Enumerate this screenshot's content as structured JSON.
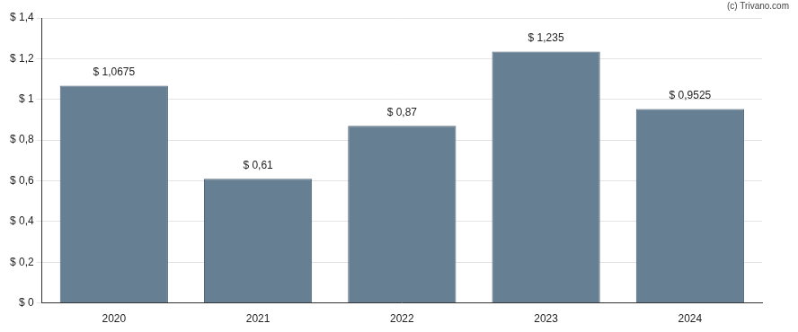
{
  "chart_data": {
    "type": "bar",
    "annotation": "(c) Trivano.com",
    "categories": [
      "2020",
      "2021",
      "2022",
      "2023",
      "2024"
    ],
    "values": [
      1.0675,
      0.61,
      0.87,
      1.235,
      0.9525
    ],
    "value_labels": [
      "$ 1,0675",
      "$ 0,61",
      "$ 0,87",
      "$ 1,235",
      "$ 0,9525"
    ],
    "data_labels": true,
    "color": "#667f93",
    "ylim": [
      0,
      1.4
    ],
    "yticks": [
      {
        "value": 0,
        "label": "$ 0"
      },
      {
        "value": 0.2,
        "label": "$ 0,2"
      },
      {
        "value": 0.4,
        "label": "$ 0,4"
      },
      {
        "value": 0.6,
        "label": "$ 0,6"
      },
      {
        "value": 0.8,
        "label": "$ 0,8"
      },
      {
        "value": 1,
        "label": "$ 1"
      },
      {
        "value": 1.2,
        "label": "$ 1,2"
      },
      {
        "value": 1.4,
        "label": "$ 1,4"
      }
    ],
    "grid": true
  }
}
